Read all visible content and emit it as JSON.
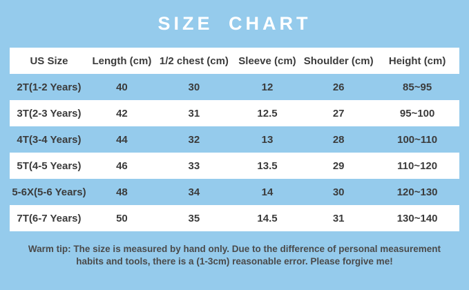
{
  "page": {
    "title": "SIZE CHART",
    "background_color": "#95CBEC",
    "title_color": "#FFFFFF",
    "table_text_color": "#3b3b3b",
    "row_white_color": "#FFFFFF"
  },
  "table": {
    "columns": [
      "US Size",
      "Length (cm)",
      "1/2 chest (cm)",
      "Sleeve (cm)",
      "Shoulder (cm)",
      "Height (cm)"
    ],
    "rows": [
      [
        "2T(1-2 Years)",
        "40",
        "30",
        "12",
        "26",
        "85~95"
      ],
      [
        "3T(2-3 Years)",
        "42",
        "31",
        "12.5",
        "27",
        "95~100"
      ],
      [
        "4T(3-4 Years)",
        "44",
        "32",
        "13",
        "28",
        "100~110"
      ],
      [
        "5T(4-5 Years)",
        "46",
        "33",
        "13.5",
        "29",
        "110~120"
      ],
      [
        "5-6X(5-6 Years)",
        "48",
        "34",
        "14",
        "30",
        "120~130"
      ],
      [
        "7T(6-7 Years)",
        "50",
        "35",
        "14.5",
        "31",
        "130~140"
      ]
    ]
  },
  "footer": {
    "warm_tip": "Warm tip: The size is measured by hand only. Due to the difference of personal measurement habits and tools, there is a (1-3cm) reasonable error. Please forgive me!"
  },
  "chart_data": {
    "type": "table",
    "title": "SIZE CHART",
    "columns": [
      "US Size",
      "Length (cm)",
      "1/2 chest (cm)",
      "Sleeve (cm)",
      "Shoulder (cm)",
      "Height (cm)"
    ],
    "rows": [
      [
        "2T(1-2 Years)",
        40,
        30,
        12,
        26,
        "85~95"
      ],
      [
        "3T(2-3 Years)",
        42,
        31,
        12.5,
        27,
        "95~100"
      ],
      [
        "4T(3-4 Years)",
        44,
        32,
        13,
        28,
        "100~110"
      ],
      [
        "5T(4-5 Years)",
        46,
        33,
        13.5,
        29,
        "110~120"
      ],
      [
        "5-6X(5-6 Years)",
        48,
        34,
        14,
        30,
        "120~130"
      ],
      [
        "7T(6-7 Years)",
        50,
        35,
        14.5,
        31,
        "130~140"
      ]
    ],
    "footnote": "Warm tip: The size is measured by hand only. Due to the difference of personal measurement habits and tools, there is a (1-3cm) reasonable error. Please forgive me!"
  }
}
